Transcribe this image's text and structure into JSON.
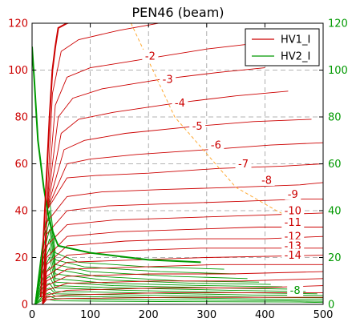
{
  "chart_data": {
    "type": "line",
    "title": "PEN46  (beam)",
    "xlim": [
      0,
      500
    ],
    "ylim_left": [
      0,
      120
    ],
    "ylim_right": [
      0,
      120
    ],
    "x_ticks": [
      "0",
      "100",
      "200",
      "300",
      "400",
      "500"
    ],
    "y_ticks_left": [
      "0",
      "20",
      "40",
      "60",
      "80",
      "100",
      "120"
    ],
    "y_ticks_right": [
      "0",
      "20",
      "40",
      "60",
      "80",
      "100",
      "120"
    ],
    "grid": true,
    "legend_position": "top-right",
    "legend": [
      {
        "label": "HV1_I",
        "color": "#cc0000"
      },
      {
        "label": "HV2_I",
        "color": "#009900"
      }
    ],
    "colors": {
      "hv1": "#cc0000",
      "hv2": "#009900",
      "guide": "#ffaa33"
    },
    "hv1_curves": [
      {
        "label": "-2",
        "label_pos": [
          203,
          106
        ],
        "points": [
          [
            18,
            0
          ],
          [
            25,
            40
          ],
          [
            35,
            90
          ],
          [
            50,
            108
          ],
          [
            80,
            113
          ],
          [
            150,
            117
          ],
          [
            240,
            121
          ],
          [
            330,
            125
          ]
        ]
      },
      {
        "label": "-3",
        "label_pos": [
          233,
          96
        ],
        "points": [
          [
            18,
            0
          ],
          [
            25,
            40
          ],
          [
            40,
            85
          ],
          [
            60,
            97
          ],
          [
            100,
            101
          ],
          [
            200,
            105
          ],
          [
            300,
            109
          ],
          [
            370,
            111
          ]
        ]
      },
      {
        "label": "-4",
        "label_pos": [
          254,
          86
        ],
        "points": [
          [
            18,
            0
          ],
          [
            25,
            40
          ],
          [
            45,
            80
          ],
          [
            70,
            88
          ],
          [
            120,
            92
          ],
          [
            220,
            96
          ],
          [
            320,
            99
          ],
          [
            400,
            101
          ]
        ]
      },
      {
        "label": "-5",
        "label_pos": [
          284,
          76
        ],
        "points": [
          [
            18,
            0
          ],
          [
            25,
            40
          ],
          [
            50,
            73
          ],
          [
            80,
            79
          ],
          [
            140,
            82
          ],
          [
            250,
            86
          ],
          [
            350,
            89
          ],
          [
            440,
            91
          ]
        ]
      },
      {
        "label": "-6",
        "label_pos": [
          316,
          68
        ],
        "points": [
          [
            18,
            0
          ],
          [
            25,
            40
          ],
          [
            55,
            66
          ],
          [
            90,
            70
          ],
          [
            160,
            73
          ],
          [
            280,
            76
          ],
          [
            380,
            78
          ],
          [
            480,
            79
          ]
        ]
      },
      {
        "label": "-7",
        "label_pos": [
          363,
          60
        ],
        "points": [
          [
            18,
            0
          ],
          [
            25,
            40
          ],
          [
            60,
            60
          ],
          [
            100,
            62
          ],
          [
            180,
            64
          ],
          [
            300,
            66
          ],
          [
            410,
            68
          ],
          [
            500,
            69
          ]
        ]
      },
      {
        "label": "-8",
        "label_pos": [
          403,
          53
        ],
        "points": [
          [
            18,
            0
          ],
          [
            25,
            40
          ],
          [
            60,
            54
          ],
          [
            110,
            55
          ],
          [
            200,
            56
          ],
          [
            320,
            58
          ],
          [
            430,
            59
          ],
          [
            500,
            60
          ]
        ]
      },
      {
        "label": "-9",
        "label_pos": [
          448,
          47
        ],
        "points": [
          [
            18,
            0
          ],
          [
            25,
            35
          ],
          [
            60,
            46
          ],
          [
            120,
            48
          ],
          [
            220,
            49
          ],
          [
            350,
            50
          ],
          [
            460,
            51
          ],
          [
            500,
            52
          ]
        ]
      },
      {
        "label": "-10",
        "label_pos": [
          448,
          40
        ],
        "points": [
          [
            18,
            0
          ],
          [
            25,
            30
          ],
          [
            60,
            40
          ],
          [
            130,
            42
          ],
          [
            240,
            43
          ],
          [
            360,
            44
          ],
          [
            470,
            45
          ],
          [
            500,
            45
          ]
        ]
      },
      {
        "label": "-11",
        "label_pos": [
          448,
          35
        ],
        "points": [
          [
            18,
            0
          ],
          [
            25,
            25
          ],
          [
            60,
            34
          ],
          [
            140,
            36
          ],
          [
            260,
            37
          ],
          [
            380,
            38
          ],
          [
            500,
            39
          ]
        ]
      },
      {
        "label": "-12",
        "label_pos": [
          448,
          29
        ],
        "points": [
          [
            18,
            0
          ],
          [
            25,
            20
          ],
          [
            60,
            29
          ],
          [
            150,
            31
          ],
          [
            270,
            32
          ],
          [
            390,
            33
          ],
          [
            500,
            33
          ]
        ]
      },
      {
        "label": "-13",
        "label_pos": [
          448,
          25
        ],
        "points": [
          [
            18,
            0
          ],
          [
            25,
            17
          ],
          [
            60,
            25
          ],
          [
            160,
            27
          ],
          [
            280,
            28
          ],
          [
            400,
            28
          ],
          [
            500,
            29
          ]
        ]
      },
      {
        "label": "-14",
        "label_pos": [
          448,
          21
        ],
        "points": [
          [
            18,
            0
          ],
          [
            25,
            14
          ],
          [
            60,
            21
          ],
          [
            170,
            23
          ],
          [
            290,
            24
          ],
          [
            410,
            24
          ],
          [
            500,
            24
          ]
        ]
      },
      {
        "label": "",
        "label_pos": null,
        "points": [
          [
            18,
            0
          ],
          [
            25,
            12
          ],
          [
            60,
            18
          ],
          [
            180,
            19
          ],
          [
            300,
            20
          ],
          [
            500,
            21
          ]
        ]
      },
      {
        "label": "",
        "label_pos": null,
        "points": [
          [
            18,
            0
          ],
          [
            25,
            10
          ],
          [
            60,
            15
          ],
          [
            190,
            16
          ],
          [
            320,
            17
          ],
          [
            500,
            17
          ]
        ]
      },
      {
        "label": "",
        "label_pos": null,
        "points": [
          [
            18,
            0
          ],
          [
            25,
            8
          ],
          [
            60,
            12
          ],
          [
            200,
            13
          ],
          [
            340,
            13
          ],
          [
            500,
            14
          ]
        ]
      },
      {
        "label": "",
        "label_pos": null,
        "points": [
          [
            18,
            0
          ],
          [
            25,
            6
          ],
          [
            60,
            9
          ],
          [
            210,
            10
          ],
          [
            360,
            10
          ],
          [
            500,
            11
          ]
        ]
      },
      {
        "label": "",
        "label_pos": null,
        "points": [
          [
            18,
            0
          ],
          [
            25,
            4
          ],
          [
            60,
            6
          ],
          [
            220,
            7
          ],
          [
            380,
            7
          ],
          [
            500,
            8
          ]
        ]
      },
      {
        "label": "",
        "label_pos": null,
        "points": [
          [
            18,
            0
          ],
          [
            25,
            3
          ],
          [
            60,
            4
          ],
          [
            230,
            5
          ],
          [
            400,
            5
          ],
          [
            500,
            5
          ]
        ]
      },
      {
        "label": "",
        "label_pos": null,
        "points": [
          [
            18,
            0
          ],
          [
            25,
            2
          ],
          [
            60,
            2.5
          ],
          [
            240,
            3
          ],
          [
            500,
            3
          ]
        ]
      }
    ],
    "hv1_envelope": [
      [
        15,
        3
      ],
      [
        20,
        30
      ],
      [
        25,
        55
      ],
      [
        30,
        80
      ],
      [
        35,
        100
      ],
      [
        40,
        110
      ],
      [
        45,
        118
      ],
      [
        60,
        120
      ],
      [
        75,
        121
      ]
    ],
    "hv2_envelope": [
      [
        0,
        110
      ],
      [
        4,
        95
      ],
      [
        10,
        70
      ],
      [
        20,
        50
      ],
      [
        30,
        35
      ],
      [
        40,
        28
      ],
      [
        45,
        25
      ],
      [
        100,
        22
      ],
      [
        200,
        19
      ],
      [
        290,
        18
      ]
    ],
    "hv2_curves": [
      [
        [
          5,
          0
        ],
        [
          20,
          30
        ],
        [
          30,
          45
        ],
        [
          40,
          22
        ],
        [
          80,
          18
        ],
        [
          200,
          16
        ],
        [
          330,
          15
        ]
      ],
      [
        [
          5,
          0
        ],
        [
          20,
          28
        ],
        [
          30,
          40
        ],
        [
          40,
          19
        ],
        [
          90,
          16
        ],
        [
          220,
          14
        ],
        [
          350,
          13
        ]
      ],
      [
        [
          5,
          0
        ],
        [
          20,
          25
        ],
        [
          30,
          36
        ],
        [
          40,
          17
        ],
        [
          100,
          14
        ],
        [
          240,
          12
        ],
        [
          370,
          11
        ]
      ],
      [
        [
          5,
          0
        ],
        [
          20,
          22
        ],
        [
          30,
          32
        ],
        [
          40,
          15
        ],
        [
          110,
          12
        ],
        [
          260,
          10
        ],
        [
          390,
          9.5
        ]
      ],
      [
        [
          5,
          0
        ],
        [
          20,
          20
        ],
        [
          30,
          28
        ],
        [
          40,
          13
        ],
        [
          120,
          10.5
        ],
        [
          280,
          9
        ],
        [
          410,
          8.5
        ]
      ],
      [
        [
          5,
          0
        ],
        [
          20,
          18
        ],
        [
          30,
          24
        ],
        [
          40,
          11
        ],
        [
          130,
          9
        ],
        [
          300,
          8
        ],
        [
          430,
          7.5
        ]
      ],
      [
        [
          5,
          0
        ],
        [
          20,
          15
        ],
        [
          30,
          20
        ],
        [
          40,
          9.5
        ],
        [
          140,
          8
        ],
        [
          320,
          7
        ],
        [
          450,
          6.5
        ]
      ],
      [
        [
          5,
          0
        ],
        [
          20,
          12
        ],
        [
          30,
          16
        ],
        [
          40,
          8
        ],
        [
          150,
          7
        ],
        [
          340,
          6
        ],
        [
          470,
          5.5
        ]
      ],
      [
        [
          5,
          0
        ],
        [
          20,
          10
        ],
        [
          30,
          12
        ],
        [
          40,
          7
        ],
        [
          160,
          6
        ],
        [
          360,
          5
        ],
        [
          490,
          4.5
        ]
      ],
      [
        [
          5,
          0
        ],
        [
          20,
          8
        ],
        [
          30,
          9
        ],
        [
          40,
          5.5
        ],
        [
          170,
          5
        ],
        [
          380,
          4
        ],
        [
          500,
          3.8
        ]
      ],
      [
        [
          5,
          0
        ],
        [
          20,
          6
        ],
        [
          30,
          7
        ],
        [
          40,
          4.5
        ],
        [
          180,
          4
        ],
        [
          400,
          3
        ],
        [
          500,
          2.8
        ]
      ],
      [
        [
          5,
          0
        ],
        [
          20,
          4
        ],
        [
          30,
          5
        ],
        [
          40,
          3.5
        ],
        [
          190,
          3
        ],
        [
          420,
          2.2
        ],
        [
          500,
          2
        ]
      ],
      [
        [
          5,
          0
        ],
        [
          20,
          3
        ],
        [
          30,
          3.5
        ],
        [
          40,
          2.5
        ],
        [
          200,
          2
        ],
        [
          440,
          1.5
        ],
        [
          500,
          1.3
        ]
      ],
      [
        [
          5,
          0
        ],
        [
          20,
          2
        ],
        [
          30,
          2
        ],
        [
          40,
          1.5
        ],
        [
          220,
          1.2
        ],
        [
          460,
          1
        ],
        [
          500,
          0.8
        ]
      ]
    ],
    "hv2_label": {
      "label": "-8",
      "label_pos": [
        452,
        6
      ]
    },
    "guide_line": [
      [
        170,
        120
      ],
      [
        245,
        80
      ],
      [
        350,
        50
      ],
      [
        420,
        40
      ],
      [
        460,
        35
      ]
    ]
  }
}
